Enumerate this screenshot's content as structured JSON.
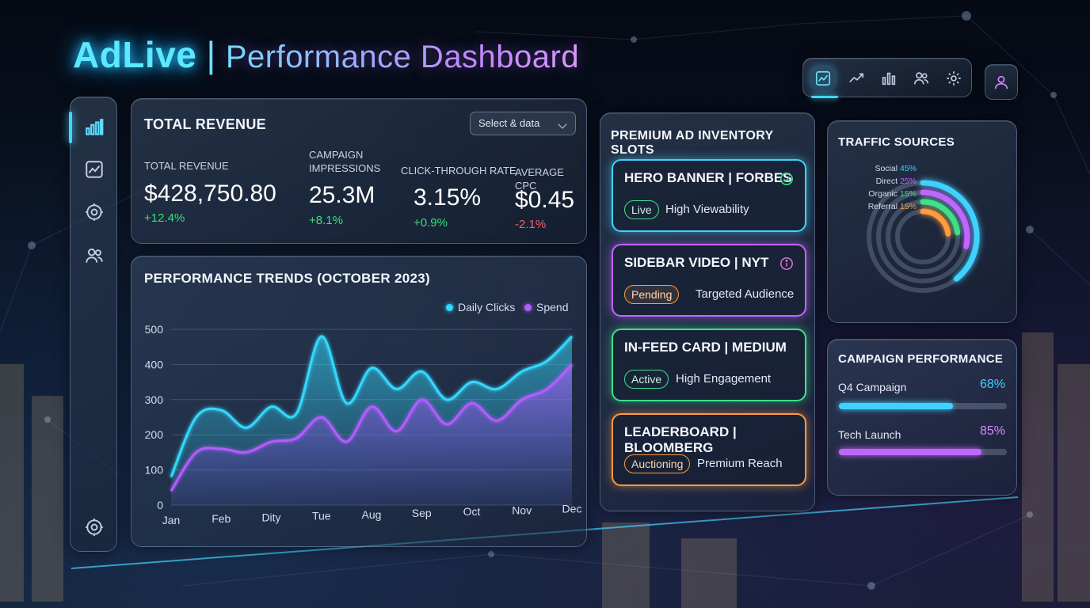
{
  "header": {
    "brand": "AdLive",
    "separator": "|",
    "subtitle": "Performance Dashboard"
  },
  "toolbar": {
    "items": [
      {
        "icon": "dashboard-chart-icon",
        "active": true
      },
      {
        "icon": "trend-line-icon",
        "active": false
      },
      {
        "icon": "bar-chart-icon",
        "active": false
      },
      {
        "icon": "users-icon",
        "active": false
      },
      {
        "icon": "gear-icon",
        "active": false
      }
    ],
    "user_icon": "user-icon"
  },
  "sidebar": {
    "items": [
      {
        "icon": "bar-chart-icon",
        "active": true
      },
      {
        "icon": "line-chart-icon",
        "active": false
      },
      {
        "icon": "gear-icon",
        "active": false
      },
      {
        "icon": "users-icon",
        "active": false
      }
    ],
    "bottom_icon": "gear-icon"
  },
  "revenue": {
    "title": "TOTAL REVENUE",
    "select_label": "Select & data",
    "metrics": [
      {
        "label": "TOTAL REVENUE",
        "value": "$428,750.80",
        "change": "+12.4%",
        "trend": "up"
      },
      {
        "label": "CAMPAIGN\nIMPRESSIONS",
        "value": "25.3M",
        "change": "+8.1%",
        "trend": "up"
      },
      {
        "label": "CLICK-THROUGH RATE",
        "value": "3.15%",
        "change": "+0.9%",
        "trend": "up"
      },
      {
        "label": "AVERAGE CPC",
        "value": "$0.45",
        "change": "-2.1%",
        "trend": "down"
      }
    ]
  },
  "trends": {
    "title": "PERFORMANCE TRENDS (OCTOBER 2023)"
  },
  "chart_data": {
    "type": "area",
    "title": "PERFORMANCE TRENDS (OCTOBER 2023)",
    "categories": [
      "Jan",
      "Feb",
      "Dity",
      "Tue",
      "Aug",
      "Sep",
      "Oct",
      "Nov",
      "Dec"
    ],
    "x": [
      0,
      0.5,
      1,
      1.5,
      2,
      2.5,
      3,
      3.5,
      4,
      4.5,
      5,
      5.5,
      6,
      6.5,
      7,
      7.5,
      8
    ],
    "yticks": [
      0,
      100,
      200,
      300,
      400,
      500
    ],
    "ylim": [
      0,
      500
    ],
    "series": [
      {
        "name": "Daily Clicks",
        "color": "#33d9ff",
        "values": [
          80,
          250,
          270,
          220,
          280,
          260,
          480,
          290,
          390,
          330,
          380,
          300,
          350,
          330,
          380,
          410,
          480
        ]
      },
      {
        "name": "Spend",
        "color": "#b45cff",
        "values": [
          40,
          150,
          160,
          150,
          180,
          190,
          250,
          180,
          280,
          210,
          300,
          230,
          290,
          240,
          300,
          330,
          400
        ]
      }
    ],
    "legend": "top-right",
    "grid": true
  },
  "inventory": {
    "title": "PREMIUM AD INVENTORY SLOTS",
    "slots": [
      {
        "name": "HERO BANNER | FORBES",
        "status": "Live",
        "desc": "High Viewability",
        "color": "#3fd2ff",
        "icon": "check-circle-icon"
      },
      {
        "name": "SIDEBAR VIDEO | NYT",
        "status": "Pending",
        "desc": "Targeted Audience",
        "color": "#c066ff",
        "icon": "info-circle-icon"
      },
      {
        "name": "IN-FEED CARD | MEDIUM",
        "status": "Active",
        "desc": "High Engagement",
        "color": "#3ee08a",
        "icon": ""
      },
      {
        "name": "LEADERBOARD | BLOOMBERG",
        "status": "Auctioning",
        "desc": "Premium Reach",
        "color": "#ff9a3d",
        "icon": ""
      }
    ]
  },
  "traffic": {
    "title": "TRAFFIC SOURCES",
    "sources": [
      {
        "name": "Social",
        "pct": "45%",
        "value": 45,
        "color": "#3fd2ff"
      },
      {
        "name": "Direct",
        "pct": "25%",
        "value": 25,
        "color": "#c066ff"
      },
      {
        "name": "Organic",
        "pct": "15%",
        "value": 15,
        "color": "#3ee08a"
      },
      {
        "name": "Referral",
        "pct": "15%",
        "value": 15,
        "color": "#ff9a3d"
      }
    ]
  },
  "campaign": {
    "title": "CAMPAIGN PERFORMANCE",
    "items": [
      {
        "name": "Q4 Campaign",
        "pct": "68%",
        "value": 0.68,
        "color": "#3fd2ff"
      },
      {
        "name": "Tech Launch",
        "pct": "85%",
        "value": 0.85,
        "color": "#c066ff"
      }
    ]
  }
}
